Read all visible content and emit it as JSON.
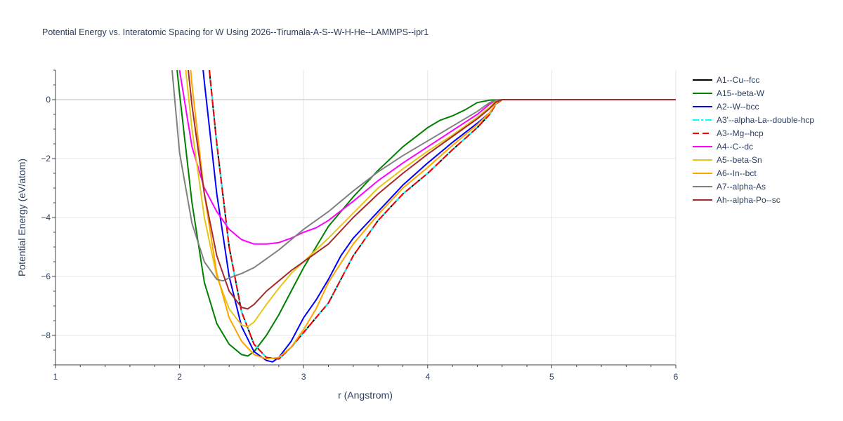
{
  "chart_data": {
    "type": "line",
    "title": "Potential Energy vs. Interatomic Spacing for W Using 2026--Tirumala-A-S--W-H-He--LAMMPS--ipr1",
    "xlabel": "r (Angstrom)",
    "ylabel": "Potential Energy (eV/atom)",
    "xlim": [
      1,
      6
    ],
    "ylim": [
      -9,
      1
    ],
    "xticks": [
      1,
      2,
      3,
      4,
      5,
      6
    ],
    "yticks": [
      0,
      -2,
      -4,
      -6,
      -8
    ],
    "grid": true,
    "legend_position": "right",
    "series": [
      {
        "name": "A1--Cu--fcc",
        "color": "#000000",
        "dash": "solid",
        "x": [
          2.24,
          2.3,
          2.4,
          2.5,
          2.6,
          2.7,
          2.8,
          2.9,
          3.0,
          3.2,
          3.4,
          3.6,
          3.8,
          4.0,
          4.2,
          4.4,
          4.5,
          4.55,
          4.6,
          5.0,
          6.0
        ],
        "y": [
          1.0,
          -1.5,
          -5.0,
          -7.2,
          -8.3,
          -8.75,
          -8.8,
          -8.4,
          -7.9,
          -6.9,
          -5.3,
          -4.1,
          -3.2,
          -2.5,
          -1.7,
          -0.95,
          -0.5,
          -0.15,
          0,
          0,
          0
        ]
      },
      {
        "name": "A15--beta-W",
        "color": "#008000",
        "dash": "solid",
        "x": [
          1.98,
          2.0,
          2.1,
          2.2,
          2.3,
          2.4,
          2.5,
          2.55,
          2.6,
          2.7,
          2.8,
          2.9,
          3.0,
          3.2,
          3.4,
          3.6,
          3.8,
          4.0,
          4.1,
          4.2,
          4.3,
          4.4,
          4.5,
          4.6,
          5.0,
          6.0
        ],
        "y": [
          1.0,
          0.2,
          -3.5,
          -6.2,
          -7.6,
          -8.3,
          -8.65,
          -8.7,
          -8.55,
          -8.0,
          -7.3,
          -6.5,
          -5.7,
          -4.3,
          -3.3,
          -2.4,
          -1.6,
          -0.95,
          -0.7,
          -0.55,
          -0.35,
          -0.1,
          -0.02,
          0,
          0,
          0
        ]
      },
      {
        "name": "A2--W--bcc",
        "color": "#0000ff",
        "dash": "solid",
        "x": [
          2.19,
          2.2,
          2.3,
          2.4,
          2.5,
          2.6,
          2.7,
          2.75,
          2.8,
          2.9,
          3.0,
          3.1,
          3.2,
          3.3,
          3.4,
          3.6,
          3.8,
          4.0,
          4.2,
          4.4,
          4.5,
          4.55,
          4.6,
          5.0,
          6.0
        ],
        "y": [
          1.0,
          0.6,
          -3.2,
          -6.0,
          -7.7,
          -8.55,
          -8.85,
          -8.9,
          -8.75,
          -8.2,
          -7.4,
          -6.8,
          -6.1,
          -5.3,
          -4.7,
          -3.8,
          -2.9,
          -2.15,
          -1.45,
          -0.8,
          -0.45,
          -0.15,
          0,
          0,
          0
        ]
      },
      {
        "name": "A3'--alpha-La--double-hcp",
        "color": "#00ffff",
        "dash": "dashdot",
        "x": [
          2.24,
          2.3,
          2.4,
          2.5,
          2.6,
          2.7,
          2.8,
          2.9,
          3.0,
          3.2,
          3.4,
          3.6,
          3.8,
          4.0,
          4.2,
          4.4,
          4.5,
          4.55,
          4.6,
          5.0,
          6.0
        ],
        "y": [
          1.0,
          -1.5,
          -5.0,
          -7.2,
          -8.3,
          -8.75,
          -8.8,
          -8.4,
          -7.9,
          -6.9,
          -5.3,
          -4.1,
          -3.2,
          -2.5,
          -1.7,
          -0.95,
          -0.5,
          -0.15,
          0,
          0,
          0
        ]
      },
      {
        "name": "A3--Mg--hcp",
        "color": "#ff0000",
        "dash": "dash",
        "x": [
          2.24,
          2.3,
          2.4,
          2.5,
          2.6,
          2.7,
          2.8,
          2.9,
          3.0,
          3.2,
          3.4,
          3.6,
          3.8,
          4.0,
          4.2,
          4.4,
          4.5,
          4.55,
          4.6,
          5.0,
          6.0
        ],
        "y": [
          1.0,
          -1.5,
          -5.0,
          -7.2,
          -8.3,
          -8.75,
          -8.8,
          -8.4,
          -7.9,
          -6.9,
          -5.3,
          -4.1,
          -3.2,
          -2.5,
          -1.7,
          -0.95,
          -0.5,
          -0.15,
          0,
          0,
          0
        ]
      },
      {
        "name": "A4--C--dc",
        "color": "#ff00ff",
        "dash": "solid",
        "x": [
          2.0,
          2.1,
          2.2,
          2.3,
          2.4,
          2.5,
          2.6,
          2.7,
          2.8,
          2.9,
          3.0,
          3.1,
          3.2,
          3.4,
          3.6,
          3.8,
          4.0,
          4.2,
          4.4,
          4.5,
          4.55,
          4.6,
          5.0,
          6.0
        ],
        "y": [
          1.0,
          -1.6,
          -3.0,
          -3.8,
          -4.4,
          -4.75,
          -4.9,
          -4.9,
          -4.85,
          -4.7,
          -4.5,
          -4.35,
          -4.1,
          -3.45,
          -2.75,
          -2.15,
          -1.6,
          -1.05,
          -0.5,
          -0.15,
          -0.03,
          0,
          0,
          0
        ]
      },
      {
        "name": "A5--beta-Sn",
        "color": "#e6c619",
        "dash": "solid",
        "x": [
          2.05,
          2.1,
          2.2,
          2.3,
          2.4,
          2.5,
          2.55,
          2.6,
          2.7,
          2.8,
          2.9,
          3.0,
          3.2,
          3.4,
          3.6,
          3.8,
          4.0,
          4.2,
          4.4,
          4.5,
          4.55,
          4.6,
          5.0,
          6.0
        ],
        "y": [
          1.0,
          -1.0,
          -4.0,
          -6.0,
          -7.1,
          -7.65,
          -7.7,
          -7.55,
          -6.95,
          -6.4,
          -5.9,
          -5.5,
          -4.7,
          -3.85,
          -3.0,
          -2.35,
          -1.75,
          -1.2,
          -0.6,
          -0.25,
          -0.05,
          0,
          0,
          0
        ]
      },
      {
        "name": "A6--In--bct",
        "color": "#ffa500",
        "dash": "solid",
        "x": [
          2.09,
          2.1,
          2.2,
          2.3,
          2.4,
          2.5,
          2.6,
          2.7,
          2.8,
          2.9,
          3.0,
          3.1,
          3.2,
          3.4,
          3.6,
          3.8,
          4.0,
          4.2,
          4.4,
          4.5,
          4.55,
          4.6,
          5.0,
          6.0
        ],
        "y": [
          1.0,
          0.5,
          -3.2,
          -5.9,
          -7.4,
          -8.2,
          -8.65,
          -8.8,
          -8.75,
          -8.4,
          -7.8,
          -7.1,
          -6.2,
          -4.9,
          -3.9,
          -3.0,
          -2.3,
          -1.55,
          -0.85,
          -0.45,
          -0.12,
          0,
          0,
          0
        ]
      },
      {
        "name": "A7--alpha-As",
        "color": "#808080",
        "dash": "solid",
        "x": [
          1.94,
          2.0,
          2.1,
          2.2,
          2.3,
          2.35,
          2.4,
          2.5,
          2.6,
          2.8,
          3.0,
          3.2,
          3.4,
          3.6,
          3.8,
          4.0,
          4.2,
          4.4,
          4.5,
          4.55,
          4.6,
          5.0,
          6.0
        ],
        "y": [
          1.0,
          -1.8,
          -4.2,
          -5.5,
          -6.1,
          -6.15,
          -6.05,
          -5.9,
          -5.7,
          -5.1,
          -4.4,
          -3.8,
          -3.1,
          -2.45,
          -1.9,
          -1.4,
          -0.9,
          -0.4,
          -0.1,
          -0.02,
          0,
          0,
          0
        ]
      },
      {
        "name": "Ah--alpha-Po--sc",
        "color": "#a52a2a",
        "dash": "solid",
        "x": [
          2.07,
          2.1,
          2.2,
          2.3,
          2.4,
          2.5,
          2.55,
          2.6,
          2.7,
          2.8,
          2.9,
          3.0,
          3.2,
          3.4,
          3.6,
          3.8,
          4.0,
          4.2,
          4.4,
          4.5,
          4.55,
          4.6,
          5.0,
          6.0
        ],
        "y": [
          1.0,
          -0.2,
          -3.2,
          -5.3,
          -6.5,
          -7.05,
          -7.1,
          -6.95,
          -6.5,
          -6.15,
          -5.8,
          -5.5,
          -4.9,
          -4.0,
          -3.2,
          -2.5,
          -1.85,
          -1.25,
          -0.65,
          -0.3,
          -0.08,
          0,
          0,
          0
        ]
      }
    ]
  }
}
